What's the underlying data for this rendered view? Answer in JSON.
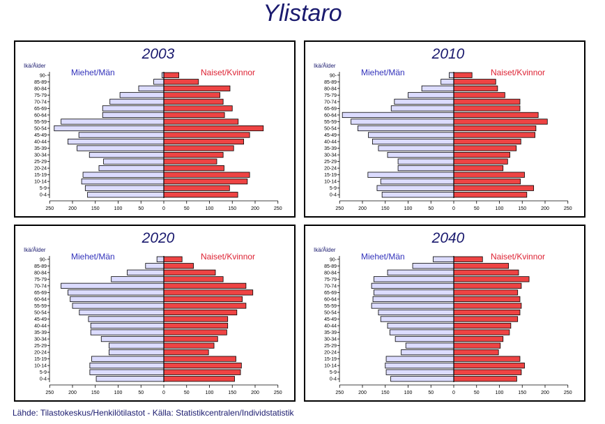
{
  "page": {
    "title": "Ylistaro",
    "footer": "Lähde: Tilastokeskus/Henkilötilastot  -  Källa: Statistikcentralen/Individstatistik"
  },
  "colors": {
    "male_fill": "#dcdcff",
    "female_fill": "#ee4444",
    "title": "#1a1a6e",
    "male_label": "#3333bb",
    "female_label": "#dd2233"
  },
  "chart_data": [
    {
      "type": "bar",
      "title": "2003",
      "ylabel": "Ikä/Ålder",
      "male_label": "Miehet/Män",
      "female_label": "Naiset/Kvinnor",
      "categories": [
        "0-4",
        "5-9",
        "10-14",
        "15-19",
        "20-24",
        "25-29",
        "30-34",
        "35-39",
        "40-44",
        "45-49",
        "50-54",
        "55-59",
        "60-64",
        "65-69",
        "70-74",
        "75-79",
        "80-84",
        "85-89",
        "90-"
      ],
      "xticks": [
        "250",
        "200",
        "150",
        "100",
        "50",
        "0",
        "50",
        "100",
        "150",
        "200",
        "250"
      ],
      "xlim": [
        -250,
        250
      ],
      "series": [
        {
          "name": "Miehet/Män",
          "values": [
            167,
            172,
            180,
            177,
            142,
            132,
            163,
            190,
            210,
            186,
            240,
            225,
            134,
            134,
            118,
            96,
            55,
            22,
            4
          ]
        },
        {
          "name": "Naiset/Kvinnor",
          "values": [
            162,
            144,
            183,
            188,
            132,
            116,
            130,
            153,
            175,
            188,
            218,
            163,
            133,
            150,
            130,
            123,
            145,
            76,
            33
          ]
        }
      ]
    },
    {
      "type": "bar",
      "title": "2010",
      "ylabel": "Ikä/Ålder",
      "male_label": "Miehet/Män",
      "female_label": "Naiset/Kvinnor",
      "categories": [
        "0-4",
        "5-9",
        "10-14",
        "15-19",
        "20-24",
        "25-29",
        "30-34",
        "35-39",
        "40-44",
        "45-49",
        "50-54",
        "55-59",
        "60-64",
        "65-69",
        "70-74",
        "75-79",
        "80-84",
        "85-89",
        "90-"
      ],
      "xticks": [
        "250",
        "200",
        "150",
        "100",
        "50",
        "0",
        "50",
        "100",
        "150",
        "200",
        "250"
      ],
      "xlim": [
        -250,
        250
      ],
      "series": [
        {
          "name": "Miehet/Män",
          "values": [
            157,
            168,
            160,
            188,
            122,
            122,
            145,
            165,
            178,
            187,
            210,
            225,
            244,
            137,
            130,
            100,
            70,
            28,
            10
          ]
        },
        {
          "name": "Naiset/Kvinnor",
          "values": [
            160,
            175,
            146,
            155,
            108,
            118,
            123,
            137,
            147,
            178,
            180,
            205,
            185,
            145,
            145,
            112,
            96,
            92,
            40
          ]
        }
      ]
    },
    {
      "type": "bar",
      "title": "2020",
      "ylabel": "Ikä/Ålder",
      "male_label": "Miehet/Män",
      "female_label": "Naiset/Kvinnor",
      "categories": [
        "0-4",
        "5-9",
        "10-14",
        "15-19",
        "20-24",
        "25-29",
        "30-34",
        "35-39",
        "40-44",
        "45-49",
        "50-54",
        "55-59",
        "60-64",
        "65-69",
        "70-74",
        "75-79",
        "80-84",
        "85-89",
        "90-"
      ],
      "xticks": [
        "250",
        "200",
        "150",
        "100",
        "50",
        "0",
        "50",
        "100",
        "150",
        "200",
        "250"
      ],
      "xlim": [
        -250,
        250
      ],
      "series": [
        {
          "name": "Miehet/Män",
          "values": [
            148,
            162,
            162,
            158,
            120,
            120,
            137,
            160,
            160,
            165,
            185,
            200,
            205,
            210,
            225,
            115,
            80,
            40,
            15
          ]
        },
        {
          "name": "Naiset/Kvinnor",
          "values": [
            155,
            168,
            170,
            158,
            98,
            110,
            118,
            138,
            140,
            140,
            160,
            180,
            172,
            195,
            180,
            130,
            113,
            65,
            40
          ]
        }
      ]
    },
    {
      "type": "bar",
      "title": "2040",
      "ylabel": "Ikä/Ålder",
      "male_label": "Miehet/Män",
      "female_label": "Naiset/Kvinnor",
      "categories": [
        "0-4",
        "5-9",
        "10-14",
        "15-19",
        "20-24",
        "25-29",
        "30-34",
        "35-39",
        "40-44",
        "45-49",
        "50-54",
        "55-59",
        "60-64",
        "65-69",
        "70-74",
        "75-79",
        "80-84",
        "85-89",
        "90-"
      ],
      "xticks": [
        "250",
        "200",
        "150",
        "100",
        "50",
        "0",
        "50",
        "100",
        "150",
        "200",
        "250"
      ],
      "xlim": [
        -250,
        250
      ],
      "series": [
        {
          "name": "Miehet/Män",
          "values": [
            138,
            148,
            150,
            148,
            115,
            105,
            128,
            140,
            145,
            160,
            165,
            180,
            177,
            175,
            180,
            175,
            145,
            90,
            45
          ]
        },
        {
          "name": "Naiset/Kvinnor",
          "values": [
            138,
            148,
            155,
            145,
            98,
            102,
            108,
            122,
            125,
            140,
            145,
            148,
            145,
            140,
            148,
            165,
            142,
            120,
            63
          ]
        }
      ]
    }
  ]
}
